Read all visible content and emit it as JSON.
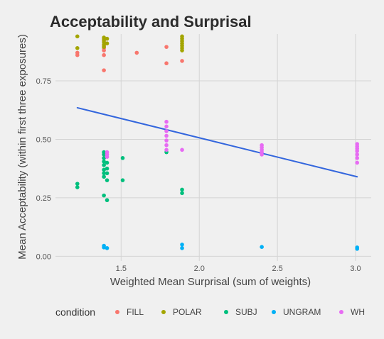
{
  "chart_data": {
    "type": "scatter",
    "title": "Acceptability and Surprisal",
    "xlabel": "Weighted Mean Surprisal (sum of weights)",
    "ylabel": "Mean Acceptability (within first three exposures)",
    "xlim": [
      1.08,
      3.1
    ],
    "ylim": [
      -0.02,
      0.95
    ],
    "x_ticks": [
      1.5,
      2.0,
      2.5,
      3.0
    ],
    "x_tick_labels": [
      "1.5",
      "2.0",
      "2.5",
      "3.0"
    ],
    "y_ticks": [
      0.0,
      0.25,
      0.5,
      0.75
    ],
    "y_tick_labels": [
      "0.00",
      "0.25",
      "0.50",
      "0.75"
    ],
    "grid": true,
    "legend_title": "condition",
    "legend_position": "bottom",
    "series": [
      {
        "name": "FILL",
        "color": "#f8766d",
        "points": [
          [
            1.22,
            0.86
          ],
          [
            1.22,
            0.87
          ],
          [
            1.39,
            0.86
          ],
          [
            1.39,
            0.88
          ],
          [
            1.39,
            0.89
          ],
          [
            1.39,
            0.9
          ],
          [
            1.39,
            0.92
          ],
          [
            1.39,
            0.93
          ],
          [
            1.39,
            0.795
          ],
          [
            1.6,
            0.87
          ],
          [
            1.79,
            0.895
          ],
          [
            1.79,
            0.825
          ],
          [
            1.89,
            0.835
          ]
        ]
      },
      {
        "name": "POLAR",
        "color": "#a3a500",
        "points": [
          [
            1.22,
            0.94
          ],
          [
            1.22,
            0.89
          ],
          [
            1.39,
            0.935
          ],
          [
            1.39,
            0.925
          ],
          [
            1.39,
            0.915
          ],
          [
            1.39,
            0.905
          ],
          [
            1.39,
            0.895
          ],
          [
            1.41,
            0.93
          ],
          [
            1.41,
            0.91
          ],
          [
            1.89,
            0.94
          ],
          [
            1.89,
            0.93
          ],
          [
            1.89,
            0.92
          ],
          [
            1.89,
            0.91
          ],
          [
            1.89,
            0.9
          ],
          [
            1.89,
            0.89
          ],
          [
            1.89,
            0.88
          ]
        ]
      },
      {
        "name": "SUBJ",
        "color": "#00bf7d",
        "points": [
          [
            1.22,
            0.31
          ],
          [
            1.22,
            0.295
          ],
          [
            1.39,
            0.445
          ],
          [
            1.39,
            0.435
          ],
          [
            1.39,
            0.42
          ],
          [
            1.39,
            0.405
          ],
          [
            1.39,
            0.39
          ],
          [
            1.39,
            0.37
          ],
          [
            1.39,
            0.355
          ],
          [
            1.39,
            0.34
          ],
          [
            1.39,
            0.26
          ],
          [
            1.41,
            0.4
          ],
          [
            1.41,
            0.375
          ],
          [
            1.41,
            0.355
          ],
          [
            1.41,
            0.325
          ],
          [
            1.41,
            0.24
          ],
          [
            1.51,
            0.42
          ],
          [
            1.51,
            0.325
          ],
          [
            1.79,
            0.445
          ],
          [
            1.89,
            0.285
          ],
          [
            1.89,
            0.27
          ]
        ]
      },
      {
        "name": "UNGRAM",
        "color": "#00b0f6",
        "points": [
          [
            1.39,
            0.045
          ],
          [
            1.39,
            0.038
          ],
          [
            1.41,
            0.035
          ],
          [
            1.89,
            0.05
          ],
          [
            1.89,
            0.035
          ],
          [
            2.4,
            0.04
          ],
          [
            3.01,
            0.038
          ],
          [
            3.01,
            0.032
          ]
        ]
      },
      {
        "name": "WH",
        "color": "#e76bf3",
        "points": [
          [
            1.41,
            0.445
          ],
          [
            1.41,
            0.435
          ],
          [
            1.41,
            0.425
          ],
          [
            1.79,
            0.575
          ],
          [
            1.79,
            0.555
          ],
          [
            1.79,
            0.535
          ],
          [
            1.79,
            0.515
          ],
          [
            1.79,
            0.495
          ],
          [
            1.79,
            0.475
          ],
          [
            1.79,
            0.455
          ],
          [
            1.89,
            0.455
          ],
          [
            2.4,
            0.475
          ],
          [
            2.4,
            0.465
          ],
          [
            2.4,
            0.455
          ],
          [
            2.4,
            0.445
          ],
          [
            2.4,
            0.435
          ],
          [
            3.01,
            0.48
          ],
          [
            3.01,
            0.47
          ],
          [
            3.01,
            0.46
          ],
          [
            3.01,
            0.45
          ],
          [
            3.01,
            0.435
          ],
          [
            3.01,
            0.42
          ],
          [
            3.01,
            0.4
          ]
        ]
      }
    ],
    "trend_line": {
      "color": "#3366dd",
      "x": [
        1.22,
        3.01
      ],
      "y": [
        0.635,
        0.34
      ]
    }
  }
}
